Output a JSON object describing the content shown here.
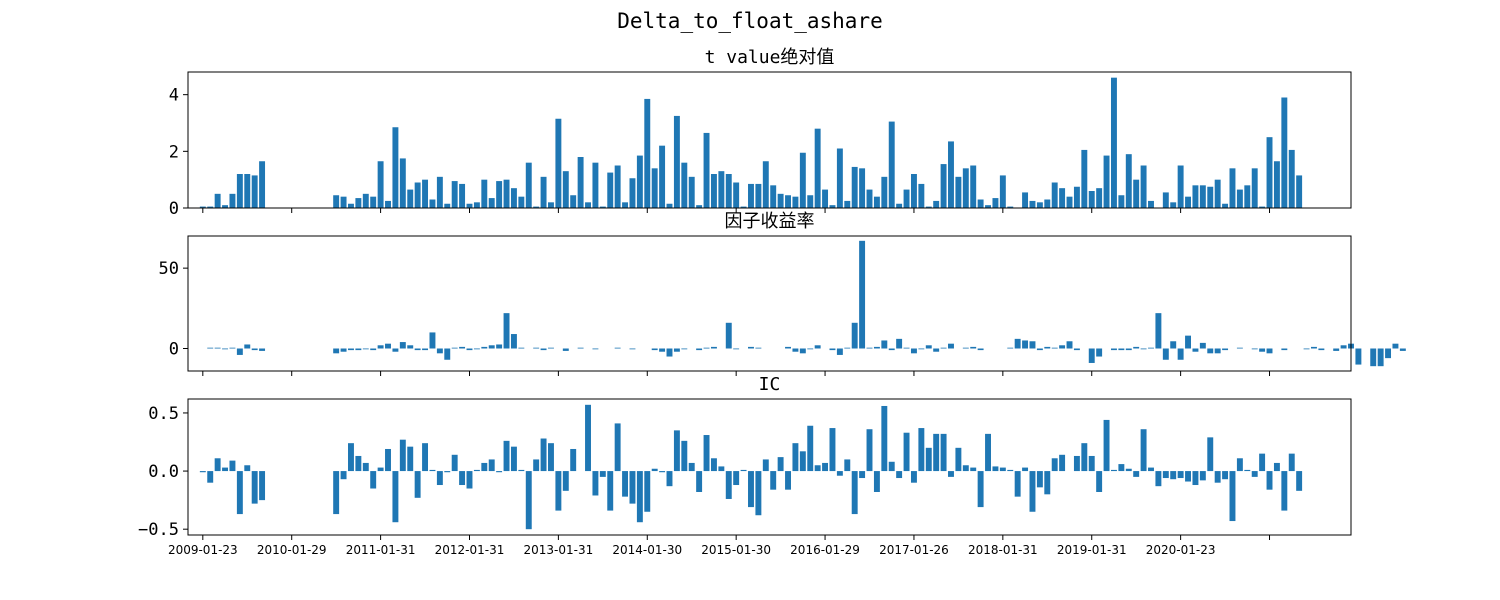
{
  "figure_title": "Delta_to_float_ashare",
  "chart_data": [
    {
      "type": "bar",
      "title": "t value绝对值",
      "color": "#1f77b4",
      "ylim": [
        0,
        4.8
      ],
      "yticks": [
        0,
        2,
        4
      ],
      "ytick_labels": [
        "0",
        "2",
        "4"
      ],
      "x_start": 1,
      "values": [
        0.05,
        0.05,
        0.5,
        0.1,
        0.5,
        1.2,
        1.2,
        1.15,
        1.65,
        0,
        0,
        0,
        0,
        0,
        0,
        0,
        0,
        0,
        0.45,
        0.4,
        0.15,
        0.35,
        0.5,
        0.4,
        1.65,
        0.25,
        2.85,
        1.75,
        0.65,
        0.9,
        1.0,
        0.3,
        1.1,
        0.15,
        0.95,
        0.85,
        0.15,
        0.2,
        1.0,
        0.35,
        0.95,
        1.0,
        0.7,
        0.4,
        1.6,
        0.05,
        1.1,
        0.2,
        3.15,
        1.3,
        0.45,
        1.8,
        0.2,
        1.6,
        0.05,
        1.25,
        1.5,
        0.2,
        1.05,
        1.85,
        3.85,
        1.4,
        2.2,
        0.15,
        3.25,
        1.6,
        1.1,
        0.1,
        2.65,
        1.2,
        1.3,
        1.2,
        0.9,
        0.05,
        0.85,
        0.85,
        1.65,
        0.8,
        0.5,
        0.45,
        0.4,
        1.95,
        0.45,
        2.8,
        0.65,
        0.1,
        2.1,
        0.25,
        1.45,
        1.4,
        0.65,
        0.4,
        1.1,
        3.05,
        0.15,
        0.65,
        1.2,
        0.85,
        0.05,
        0.25,
        1.55,
        2.35,
        1.1,
        1.4,
        1.5,
        0.3,
        0.1,
        0.35,
        1.15,
        0.05,
        0,
        0.55,
        0.25,
        0.2,
        0.3,
        0.9,
        0.7,
        0.4,
        0.75,
        2.05,
        0.6,
        0.7,
        1.85,
        4.6,
        0.45,
        1.9,
        1.0,
        1.5,
        0.25,
        0,
        0.55,
        0.2,
        1.5,
        0.4,
        0.8,
        0.8,
        0.75,
        1.0,
        0.15,
        1.4,
        0.65,
        0.8,
        1.4,
        0.05,
        2.5,
        1.65,
        3.9,
        2.05,
        1.15
      ]
    },
    {
      "type": "bar",
      "title": "因子收益率",
      "color": "#1f77b4",
      "ylim": [
        -14,
        70
      ],
      "yticks": [
        0,
        50
      ],
      "ytick_labels": [
        "0",
        "50"
      ],
      "x_start": 2,
      "values": [
        0.5,
        0.5,
        -0.5,
        0.5,
        -4,
        2.5,
        -1,
        -1.5,
        0,
        0,
        0,
        0,
        0,
        0,
        0,
        0,
        0,
        -3,
        -2,
        -1,
        -1,
        -0.5,
        -1,
        2,
        3,
        -2,
        4,
        2,
        -1,
        -1,
        10,
        -3,
        -7,
        0.5,
        1,
        -1,
        -0.5,
        1,
        2,
        2.5,
        22,
        9,
        0.5,
        0,
        0.5,
        -1,
        0.5,
        0,
        -1.5,
        0,
        0.5,
        0,
        -0.5,
        0,
        0,
        0.5,
        0,
        -0.5,
        0,
        0,
        -1,
        -2,
        -5,
        -2,
        -0.5,
        0,
        -1,
        0.5,
        1,
        0,
        16,
        -0.5,
        0,
        1,
        0.5,
        0,
        0,
        0,
        1,
        -2,
        -3,
        -0.5,
        2,
        0,
        -1,
        -4,
        0.5,
        16,
        67,
        0.5,
        1,
        5,
        -1,
        6,
        0.5,
        -3,
        -0.5,
        2,
        -2,
        0.5,
        3,
        0,
        0.5,
        1,
        -1,
        0,
        0,
        0,
        0.5,
        6,
        5,
        4.5,
        -1,
        1,
        0.5,
        2,
        4.5,
        -1,
        0,
        -9,
        -5,
        0,
        -1,
        -1,
        -1,
        1,
        -0.5,
        0.5,
        22,
        -7,
        4.5,
        -7,
        8,
        -2,
        3.5,
        -3,
        -3,
        -1,
        0,
        0.5,
        0,
        -0.5,
        -2,
        -3,
        0,
        -1,
        0,
        0,
        -0.5,
        1,
        -1,
        0,
        -1.5,
        2,
        3,
        -10,
        0,
        -11,
        -11,
        -6,
        3,
        -1.5
      ]
    },
    {
      "type": "bar",
      "title": "IC",
      "color": "#1f77b4",
      "ylim": [
        -0.55,
        0.62
      ],
      "yticks": [
        -0.5,
        0.0,
        0.5
      ],
      "ytick_labels": [
        "−0.5",
        "0.0",
        "0.5"
      ],
      "x_start": 1,
      "values": [
        -0.01,
        -0.1,
        0.11,
        0.03,
        0.09,
        -0.37,
        0.05,
        -0.28,
        -0.25,
        0,
        0,
        0,
        0,
        0,
        0,
        0,
        0,
        0,
        -0.37,
        -0.07,
        0.24,
        0.13,
        0.07,
        -0.15,
        0.03,
        0.19,
        -0.44,
        0.27,
        0.21,
        -0.23,
        0.24,
        0.01,
        -0.12,
        -0.01,
        0.14,
        -0.12,
        -0.15,
        0.01,
        0.07,
        0.1,
        -0.01,
        0.26,
        0.21,
        0.01,
        -0.5,
        0.1,
        0.28,
        0.24,
        -0.34,
        -0.17,
        0.19,
        0,
        0.57,
        -0.21,
        -0.05,
        -0.34,
        0.41,
        -0.22,
        -0.28,
        -0.44,
        -0.35,
        0.02,
        -0.01,
        -0.13,
        0.35,
        0.26,
        0.07,
        -0.18,
        0.31,
        0.11,
        0.04,
        -0.24,
        -0.12,
        0.01,
        -0.31,
        -0.38,
        0.1,
        -0.16,
        0.12,
        -0.16,
        0.24,
        0.17,
        0.39,
        0.05,
        0.07,
        0.37,
        -0.04,
        0.1,
        -0.37,
        -0.06,
        0.36,
        -0.18,
        0.56,
        0.08,
        -0.06,
        0.33,
        -0.1,
        0.37,
        0.2,
        0.32,
        0.32,
        -0.05,
        0.2,
        0.05,
        0.03,
        -0.31,
        0.32,
        0.04,
        0.03,
        0.01,
        -0.22,
        0.03,
        -0.35,
        -0.14,
        -0.2,
        0.11,
        0.14,
        0,
        0.13,
        0.24,
        0.13,
        -0.18,
        0.44,
        0.01,
        0.06,
        0.02,
        -0.05,
        0.36,
        0.03,
        -0.13,
        -0.06,
        -0.07,
        -0.06,
        -0.09,
        -0.12,
        -0.08,
        0.29,
        -0.1,
        -0.07,
        -0.43,
        0.11,
        0.01,
        -0.05,
        0.15,
        -0.16,
        0.07,
        -0.34,
        0.15,
        -0.17
      ]
    }
  ],
  "x_axis": {
    "tick_labels": [
      "2009-01-23",
      "2010-01-29",
      "2011-01-31",
      "2012-01-31",
      "2013-01-31",
      "2014-01-30",
      "2015-01-30",
      "2016-01-29",
      "2017-01-26",
      "2018-01-31",
      "2019-01-31",
      "2020-01-23",
      ""
    ]
  }
}
